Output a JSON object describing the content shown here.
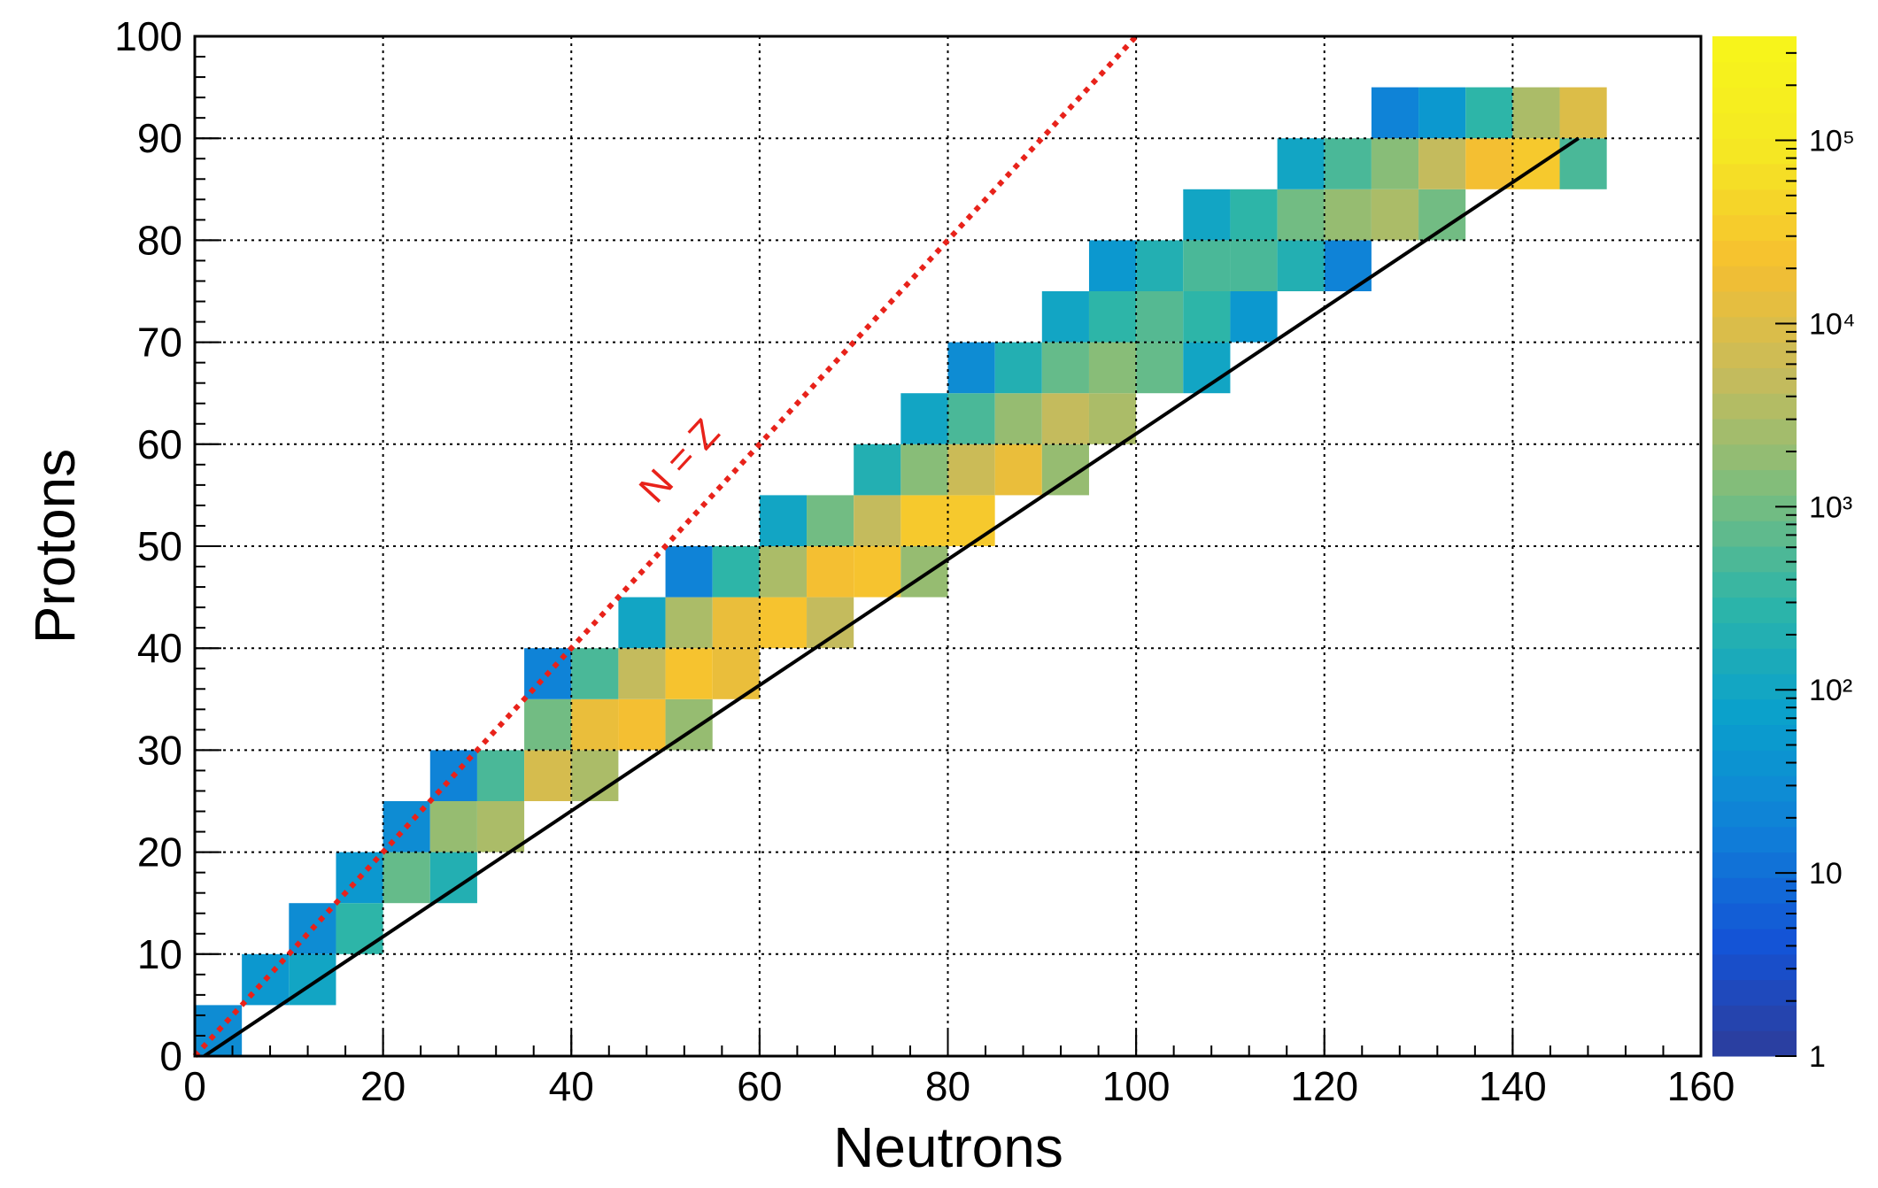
{
  "chart_data": {
    "type": "heatmap",
    "xlabel": "Neutrons",
    "ylabel": "Protons",
    "xlim": [
      0,
      160
    ],
    "xticks": [
      0,
      20,
      40,
      60,
      80,
      100,
      120,
      140,
      160
    ],
    "ylim": [
      0,
      100
    ],
    "yticks": [
      0,
      10,
      20,
      30,
      40,
      50,
      60,
      70,
      80,
      90,
      100
    ],
    "grid": true,
    "zlim": [
      1,
      370000
    ],
    "zlog": true,
    "zticks": [
      1,
      10,
      {
        "value": 100,
        "label": "10²"
      },
      {
        "value": 1000,
        "label": "10³"
      },
      {
        "value": 10000,
        "label": "10⁴"
      },
      {
        "value": 100000,
        "label": "10⁵"
      }
    ],
    "colormap": [
      "#2d3d9a",
      "#1453d6",
      "#1080d8",
      "#0aa0cc",
      "#2db5a8",
      "#7ebd7c",
      "#c6bb5c",
      "#f6bf30",
      "#f5e823",
      "#f7f51a"
    ],
    "x": [
      2.5,
      7.5,
      12.5,
      12.5,
      17.5,
      17.5,
      22.5,
      22.5,
      27.5,
      27.5,
      27.5,
      32.5,
      32.5,
      37.5,
      37.5,
      37.5,
      42.5,
      42.5,
      42.5,
      47.5,
      47.5,
      47.5,
      52.5,
      52.5,
      52.5,
      52.5,
      57.5,
      57.5,
      57.5,
      62.5,
      62.5,
      62.5,
      67.5,
      67.5,
      67.5,
      72.5,
      72.5,
      72.5,
      77.5,
      77.5,
      77.5,
      77.5,
      82.5,
      82.5,
      82.5,
      82.5,
      87.5,
      87.5,
      87.5,
      92.5,
      92.5,
      92.5,
      92.5,
      97.5,
      97.5,
      97.5,
      97.5,
      102.5,
      102.5,
      102.5,
      107.5,
      107.5,
      107.5,
      107.5,
      112.5,
      112.5,
      112.5,
      117.5,
      117.5,
      117.5,
      122.5,
      122.5,
      122.5,
      127.5,
      127.5,
      127.5,
      132.5,
      132.5,
      132.5,
      137.5,
      137.5,
      142.5,
      142.5,
      147.5,
      147.5
    ],
    "y": [
      2.5,
      7.5,
      7.5,
      12.5,
      12.5,
      17.5,
      17.5,
      22.5,
      17.5,
      22.5,
      27.5,
      22.5,
      27.5,
      27.5,
      32.5,
      37.5,
      27.5,
      32.5,
      37.5,
      32.5,
      37.5,
      42.5,
      32.5,
      37.5,
      42.5,
      47.5,
      37.5,
      42.5,
      47.5,
      42.5,
      47.5,
      52.5,
      42.5,
      47.5,
      52.5,
      47.5,
      52.5,
      57.5,
      47.5,
      52.5,
      57.5,
      62.5,
      52.5,
      57.5,
      62.5,
      67.5,
      57.5,
      62.5,
      67.5,
      57.5,
      62.5,
      67.5,
      72.5,
      62.5,
      67.5,
      72.5,
      77.5,
      67.5,
      72.5,
      77.5,
      67.5,
      72.5,
      77.5,
      82.5,
      72.5,
      77.5,
      82.5,
      77.5,
      82.5,
      87.5,
      77.5,
      82.5,
      87.5,
      82.5,
      87.5,
      92.5,
      82.5,
      87.5,
      92.5,
      87.5,
      92.5,
      87.5,
      92.5,
      87.5,
      92.5
    ],
    "values": [
      30,
      50,
      100,
      30,
      300,
      50,
      800,
      30,
      200,
      2000,
      20,
      3000,
      500,
      8000,
      1000,
      20,
      3000,
      15000,
      500,
      20000,
      5000,
      100,
      2000,
      25000,
      3000,
      20,
      15000,
      15000,
      300,
      25000,
      3000,
      100,
      5000,
      20000,
      1000,
      25000,
      5000,
      200,
      2000,
      30000,
      1500,
      100,
      30000,
      6000,
      500,
      30,
      15000,
      2000,
      200,
      2000,
      5000,
      800,
      100,
      3000,
      1500,
      300,
      50,
      800,
      600,
      200,
      100,
      300,
      500,
      100,
      50,
      500,
      300,
      200,
      1000,
      100,
      20,
      2000,
      500,
      3000,
      1500,
      20,
      1000,
      5000,
      50,
      20000,
      300,
      30000,
      3000,
      500,
      10000
    ],
    "lines": [
      {
        "x": [
          0,
          100
        ],
        "y": [
          0,
          100
        ],
        "color": "#e8221a",
        "style": "dotted",
        "label": "N = Z",
        "label_at": [
          52.5,
          57.5
        ]
      },
      {
        "x": [
          1,
          147
        ],
        "y": [
          0,
          90
        ],
        "color": "#000000",
        "style": "solid"
      }
    ]
  }
}
